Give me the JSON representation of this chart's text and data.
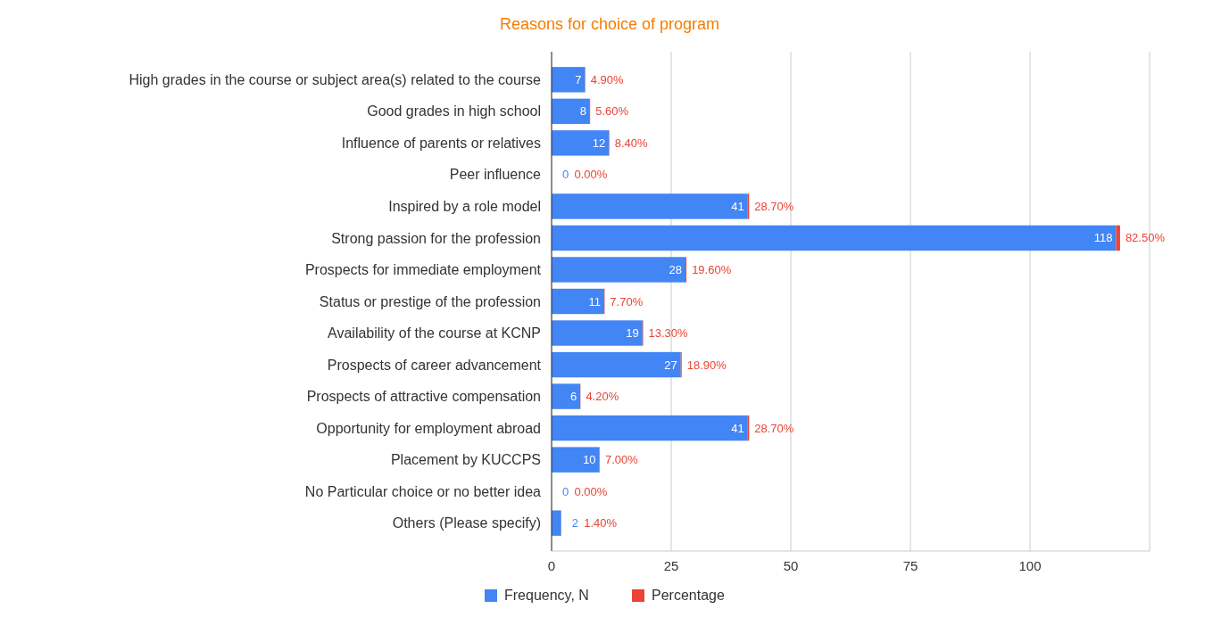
{
  "chart_data": {
    "type": "bar",
    "orientation": "horizontal",
    "stacked": true,
    "title": "Reasons for choice of program",
    "categories": [
      "High grades in the course or subject area(s) related to the course",
      "Good grades in high school",
      "Influence of parents or relatives",
      "Peer influence",
      "Inspired by a role model",
      "Strong passion for the profession",
      "Prospects for immediate employment",
      "Status or prestige of the profession",
      "Availability of the course at KCNP",
      "Prospects of career advancement",
      "Prospects of attractive compensation",
      "Opportunity for employment abroad",
      "Placement by KUCCPS",
      "No Particular choice or no better idea",
      "Others (Please specify)"
    ],
    "series": [
      {
        "name": "Frequency, N",
        "color": "#4285f4",
        "values": [
          7,
          8,
          12,
          0,
          41,
          118,
          28,
          11,
          19,
          27,
          6,
          41,
          10,
          0,
          2
        ],
        "value_labels": [
          "7",
          "8",
          "12",
          "0",
          "41",
          "118",
          "28",
          "11",
          "19",
          "27",
          "6",
          "41",
          "10",
          "0",
          "2"
        ]
      },
      {
        "name": "Percentage",
        "color": "#ea4335",
        "values": [
          0.049,
          0.056,
          0.084,
          0,
          0.287,
          0.825,
          0.196,
          0.077,
          0.133,
          0.189,
          0.042,
          0.287,
          0.07,
          0,
          0.014
        ],
        "value_labels": [
          "4.90%",
          "5.60%",
          "8.40%",
          "0.00%",
          "28.70%",
          "82.50%",
          "19.60%",
          "7.70%",
          "13.30%",
          "18.90%",
          "4.20%",
          "28.70%",
          "7.00%",
          "0.00%",
          "1.40%"
        ]
      }
    ],
    "xlim": [
      0,
      125
    ],
    "xticks": [
      0,
      25,
      50,
      75,
      100,
      {
        "value": 125,
        "label": null
      }
    ],
    "grid": "x",
    "legend": "bottom"
  }
}
